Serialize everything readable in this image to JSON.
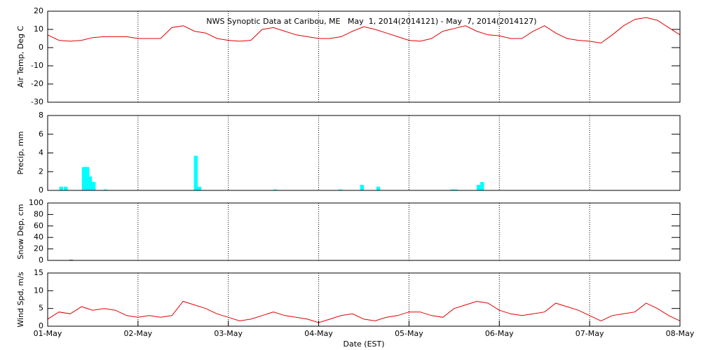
{
  "chart_data": [
    {
      "type": "line",
      "title": "NWS Synoptic Data at Caribou, ME   May  1, 2014(2014121) - May  7, 2014(2014127)",
      "y_label": "Air Temp, Deg C",
      "color": "#e00000",
      "grid": true,
      "xlim": [
        0,
        7
      ],
      "ylim": [
        -30,
        20
      ],
      "yticks": [
        -30,
        -20,
        -10,
        0,
        10,
        20
      ],
      "x": [
        0,
        0.125,
        0.25,
        0.375,
        0.5,
        0.625,
        0.75,
        0.875,
        1,
        1.125,
        1.25,
        1.375,
        1.5,
        1.625,
        1.75,
        1.875,
        2,
        2.125,
        2.25,
        2.375,
        2.5,
        2.625,
        2.75,
        2.875,
        3,
        3.125,
        3.25,
        3.375,
        3.5,
        3.625,
        3.75,
        3.875,
        4,
        4.125,
        4.25,
        4.375,
        4.5,
        4.625,
        4.75,
        4.875,
        5,
        5.125,
        5.25,
        5.375,
        5.5,
        5.625,
        5.75,
        5.875,
        6,
        6.125,
        6.25,
        6.375,
        6.5,
        6.625,
        6.75,
        6.875,
        7
      ],
      "values": [
        7,
        4,
        3.5,
        4,
        5.5,
        6,
        6,
        6,
        5,
        5,
        5,
        11,
        12,
        9,
        8,
        5,
        4,
        3.5,
        4,
        10,
        11,
        9,
        7,
        6,
        5,
        5,
        6,
        9,
        11.5,
        10,
        8,
        6,
        4,
        3.5,
        5,
        9,
        10.5,
        12,
        9,
        7,
        6.5,
        5,
        5,
        9,
        12,
        8,
        5,
        4,
        3.5,
        2.5,
        7,
        12,
        15.5,
        16.5,
        15,
        11,
        7
      ]
    },
    {
      "type": "bar",
      "y_label": "Precip, mm",
      "color": "#00ffff",
      "grid": true,
      "xlim": [
        0,
        7
      ],
      "ylim": [
        0,
        8
      ],
      "yticks": [
        0,
        2,
        4,
        6,
        8
      ],
      "x": [
        0.15,
        0.2,
        0.4,
        0.44,
        0.47,
        0.51,
        0.64,
        1.64,
        1.68,
        2.52,
        3.24,
        3.48,
        3.66,
        4.48,
        4.52,
        4.77,
        4.81
      ],
      "values": [
        0.4,
        0.4,
        2.5,
        2.5,
        1.5,
        0.9,
        0.1,
        3.7,
        0.4,
        0.1,
        0.1,
        0.6,
        0.4,
        0.1,
        0.1,
        0.6,
        0.9
      ]
    },
    {
      "type": "bar",
      "y_label": "Snow Dep, cm",
      "color": "#000080",
      "grid": true,
      "xlim": [
        0,
        7
      ],
      "ylim": [
        0,
        100
      ],
      "yticks": [
        0,
        20,
        40,
        60,
        80,
        100
      ],
      "x": [
        0.26
      ],
      "values": [
        1
      ]
    },
    {
      "type": "line",
      "y_label": "Wind Spd, m/s",
      "x_label": "Date (EST)",
      "color": "#e00000",
      "grid": true,
      "xlim": [
        0,
        7
      ],
      "ylim": [
        0,
        15
      ],
      "yticks": [
        0,
        5,
        10,
        15
      ],
      "xticks": [
        {
          "value": 0,
          "label": "01-May"
        },
        {
          "value": 1,
          "label": "02-May"
        },
        {
          "value": 2,
          "label": "03-May"
        },
        {
          "value": 3,
          "label": "04-May"
        },
        {
          "value": 4,
          "label": "05-May"
        },
        {
          "value": 5,
          "label": "06-May"
        },
        {
          "value": 6,
          "label": "07-May"
        },
        {
          "value": 7,
          "label": "08-May"
        }
      ],
      "x": [
        0,
        0.125,
        0.25,
        0.375,
        0.5,
        0.625,
        0.75,
        0.875,
        1,
        1.125,
        1.25,
        1.375,
        1.5,
        1.625,
        1.75,
        1.875,
        2,
        2.125,
        2.25,
        2.375,
        2.5,
        2.625,
        2.75,
        2.875,
        3,
        3.125,
        3.25,
        3.375,
        3.5,
        3.625,
        3.75,
        3.875,
        4,
        4.125,
        4.25,
        4.375,
        4.5,
        4.625,
        4.75,
        4.875,
        5,
        5.125,
        5.25,
        5.375,
        5.5,
        5.625,
        5.75,
        5.875,
        6,
        6.125,
        6.25,
        6.375,
        6.5,
        6.625,
        6.75,
        6.875,
        7
      ],
      "values": [
        2,
        4,
        3.5,
        5.5,
        4.5,
        5,
        4.5,
        3,
        2.5,
        3,
        2.5,
        3,
        7,
        6,
        5,
        3.5,
        2.5,
        1.5,
        2,
        3,
        4,
        3,
        2.5,
        2,
        1,
        2,
        3,
        3.5,
        2,
        1.5,
        2.5,
        3,
        4,
        4,
        3,
        2.5,
        5,
        6,
        7,
        6.5,
        4.5,
        3.5,
        3,
        3.5,
        4,
        6.5,
        5.5,
        4.5,
        3,
        1.5,
        3,
        3.5,
        4,
        6.5,
        5,
        3,
        1.5
      ]
    }
  ]
}
